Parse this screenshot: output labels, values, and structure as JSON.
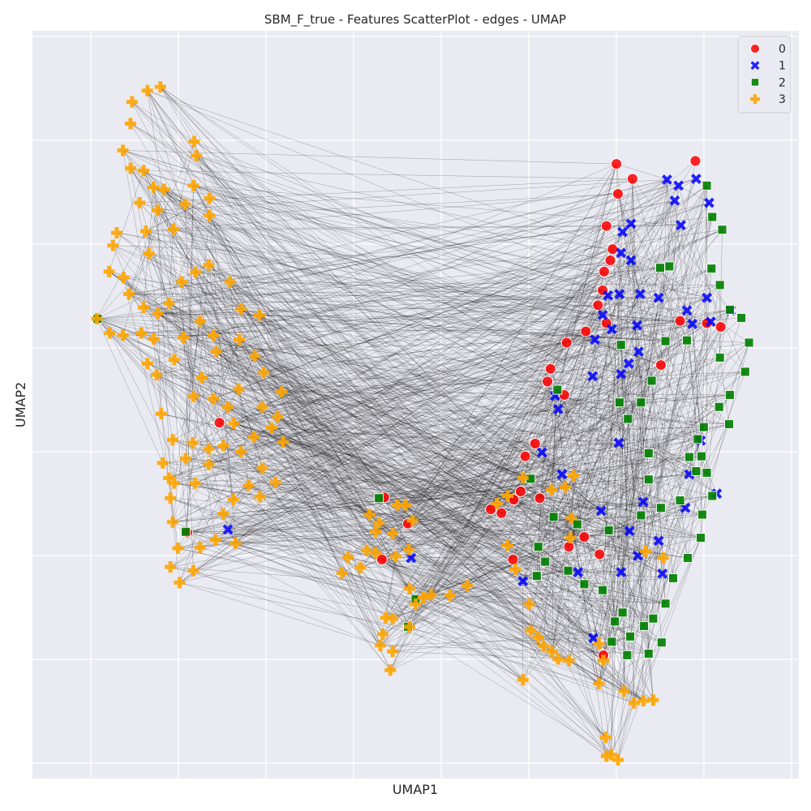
{
  "chart_data": {
    "type": "scatter",
    "title": "SBM_F_true - Features ScatterPlot - edges - UMAP",
    "xlabel": "UMAP1",
    "ylabel": "UMAP2",
    "xlim": [
      0,
      1
    ],
    "ylim": [
      0,
      1
    ],
    "grid": true,
    "tick_labels_shown": false,
    "legend": {
      "position": "top-right",
      "entries": [
        "0",
        "1",
        "2",
        "3"
      ]
    },
    "series": [
      {
        "name": "0",
        "marker": "circle",
        "color": "#ff0000",
        "points": [
          [
            0.762,
            0.822
          ],
          [
            0.783,
            0.802
          ],
          [
            0.764,
            0.782
          ],
          [
            0.749,
            0.739
          ],
          [
            0.757,
            0.708
          ],
          [
            0.754,
            0.693
          ],
          [
            0.746,
            0.678
          ],
          [
            0.744,
            0.653
          ],
          [
            0.738,
            0.633
          ],
          [
            0.749,
            0.609
          ],
          [
            0.722,
            0.598
          ],
          [
            0.697,
            0.583
          ],
          [
            0.676,
            0.548
          ],
          [
            0.672,
            0.531
          ],
          [
            0.694,
            0.513
          ],
          [
            0.656,
            0.448
          ],
          [
            0.643,
            0.431
          ],
          [
            0.637,
            0.384
          ],
          [
            0.598,
            0.36
          ],
          [
            0.612,
            0.355
          ],
          [
            0.628,
            0.373
          ],
          [
            0.662,
            0.375
          ],
          [
            0.7,
            0.31
          ],
          [
            0.72,
            0.323
          ],
          [
            0.74,
            0.3
          ],
          [
            0.82,
            0.553
          ],
          [
            0.845,
            0.612
          ],
          [
            0.88,
            0.609
          ],
          [
            0.898,
            0.604
          ],
          [
            0.865,
            0.826
          ],
          [
            0.627,
            0.293
          ],
          [
            0.49,
            0.341
          ],
          [
            0.456,
            0.293
          ],
          [
            0.244,
            0.476
          ],
          [
            0.202,
            0.329
          ],
          [
            0.459,
            0.376
          ],
          [
            0.745,
            0.165
          ]
        ]
      },
      {
        "name": "1",
        "marker": "x",
        "color": "#0000ff",
        "points": [
          [
            0.866,
            0.802
          ],
          [
            0.843,
            0.793
          ],
          [
            0.828,
            0.801
          ],
          [
            0.838,
            0.773
          ],
          [
            0.883,
            0.77
          ],
          [
            0.846,
            0.74
          ],
          [
            0.781,
            0.742
          ],
          [
            0.77,
            0.731
          ],
          [
            0.768,
            0.703
          ],
          [
            0.781,
            0.693
          ],
          [
            0.751,
            0.646
          ],
          [
            0.766,
            0.648
          ],
          [
            0.793,
            0.648
          ],
          [
            0.817,
            0.643
          ],
          [
            0.88,
            0.643
          ],
          [
            0.911,
            0.626
          ],
          [
            0.744,
            0.62
          ],
          [
            0.756,
            0.601
          ],
          [
            0.789,
            0.606
          ],
          [
            0.734,
            0.587
          ],
          [
            0.854,
            0.626
          ],
          [
            0.861,
            0.608
          ],
          [
            0.885,
            0.611
          ],
          [
            0.791,
            0.571
          ],
          [
            0.778,
            0.555
          ],
          [
            0.768,
            0.541
          ],
          [
            0.731,
            0.538
          ],
          [
            0.682,
            0.512
          ],
          [
            0.686,
            0.494
          ],
          [
            0.665,
            0.436
          ],
          [
            0.691,
            0.407
          ],
          [
            0.765,
            0.449
          ],
          [
            0.872,
            0.452
          ],
          [
            0.857,
            0.407
          ],
          [
            0.893,
            0.381
          ],
          [
            0.797,
            0.37
          ],
          [
            0.742,
            0.358
          ],
          [
            0.779,
            0.331
          ],
          [
            0.817,
            0.318
          ],
          [
            0.79,
            0.298
          ],
          [
            0.768,
            0.276
          ],
          [
            0.822,
            0.274
          ],
          [
            0.852,
            0.362
          ],
          [
            0.64,
            0.264
          ],
          [
            0.712,
            0.276
          ],
          [
            0.732,
            0.188
          ],
          [
            0.255,
            0.333
          ],
          [
            0.494,
            0.295
          ]
        ]
      },
      {
        "name": "2",
        "marker": "square",
        "color": "#008000",
        "points": [
          [
            0.88,
            0.793
          ],
          [
            0.887,
            0.751
          ],
          [
            0.9,
            0.734
          ],
          [
            0.886,
            0.682
          ],
          [
            0.897,
            0.66
          ],
          [
            0.91,
            0.627
          ],
          [
            0.925,
            0.616
          ],
          [
            0.935,
            0.583
          ],
          [
            0.93,
            0.544
          ],
          [
            0.91,
            0.513
          ],
          [
            0.896,
            0.497
          ],
          [
            0.876,
            0.47
          ],
          [
            0.868,
            0.454
          ],
          [
            0.857,
            0.43
          ],
          [
            0.873,
            0.431
          ],
          [
            0.866,
            0.411
          ],
          [
            0.88,
            0.409
          ],
          [
            0.887,
            0.378
          ],
          [
            0.874,
            0.353
          ],
          [
            0.872,
            0.322
          ],
          [
            0.855,
            0.295
          ],
          [
            0.836,
            0.268
          ],
          [
            0.826,
            0.234
          ],
          [
            0.81,
            0.214
          ],
          [
            0.798,
            0.204
          ],
          [
            0.821,
            0.182
          ],
          [
            0.804,
            0.167
          ],
          [
            0.776,
            0.165
          ],
          [
            0.756,
            0.183
          ],
          [
            0.77,
            0.222
          ],
          [
            0.744,
            0.252
          ],
          [
            0.72,
            0.26
          ],
          [
            0.699,
            0.278
          ],
          [
            0.669,
            0.29
          ],
          [
            0.66,
            0.31
          ],
          [
            0.68,
            0.35
          ],
          [
            0.711,
            0.34
          ],
          [
            0.752,
            0.332
          ],
          [
            0.794,
            0.352
          ],
          [
            0.82,
            0.362
          ],
          [
            0.845,
            0.372
          ],
          [
            0.804,
            0.4
          ],
          [
            0.777,
            0.481
          ],
          [
            0.794,
            0.503
          ],
          [
            0.808,
            0.532
          ],
          [
            0.826,
            0.585
          ],
          [
            0.854,
            0.586
          ],
          [
            0.831,
            0.685
          ],
          [
            0.819,
            0.683
          ],
          [
            0.768,
            0.58
          ],
          [
            0.766,
            0.503
          ],
          [
            0.685,
            0.52
          ],
          [
            0.65,
            0.401
          ],
          [
            0.658,
            0.271
          ],
          [
            0.804,
            0.435
          ],
          [
            0.897,
            0.563
          ],
          [
            0.909,
            0.474
          ],
          [
            0.76,
            0.21
          ],
          [
            0.78,
            0.19
          ],
          [
            0.085,
            0.615
          ],
          [
            0.2,
            0.33
          ],
          [
            0.5,
            0.24
          ],
          [
            0.49,
            0.203
          ],
          [
            0.452,
            0.375
          ]
        ]
      },
      {
        "name": "3",
        "marker": "plus",
        "color": "#ffa500",
        "points": [
          [
            0.167,
            0.925
          ],
          [
            0.15,
            0.92
          ],
          [
            0.13,
            0.905
          ],
          [
            0.128,
            0.876
          ],
          [
            0.118,
            0.84
          ],
          [
            0.128,
            0.816
          ],
          [
            0.145,
            0.813
          ],
          [
            0.158,
            0.791
          ],
          [
            0.14,
            0.77
          ],
          [
            0.163,
            0.76
          ],
          [
            0.172,
            0.788
          ],
          [
            0.21,
            0.793
          ],
          [
            0.214,
            0.833
          ],
          [
            0.211,
            0.852
          ],
          [
            0.231,
            0.776
          ],
          [
            0.231,
            0.753
          ],
          [
            0.199,
            0.768
          ],
          [
            0.184,
            0.735
          ],
          [
            0.148,
            0.732
          ],
          [
            0.152,
            0.702
          ],
          [
            0.11,
            0.73
          ],
          [
            0.105,
            0.713
          ],
          [
            0.1,
            0.678
          ],
          [
            0.119,
            0.67
          ],
          [
            0.126,
            0.648
          ],
          [
            0.084,
            0.615
          ],
          [
            0.101,
            0.596
          ],
          [
            0.118,
            0.593
          ],
          [
            0.142,
            0.596
          ],
          [
            0.158,
            0.588
          ],
          [
            0.15,
            0.555
          ],
          [
            0.162,
            0.54
          ],
          [
            0.185,
            0.56
          ],
          [
            0.197,
            0.59
          ],
          [
            0.219,
            0.612
          ],
          [
            0.236,
            0.593
          ],
          [
            0.24,
            0.571
          ],
          [
            0.221,
            0.536
          ],
          [
            0.21,
            0.511
          ],
          [
            0.236,
            0.508
          ],
          [
            0.269,
            0.521
          ],
          [
            0.27,
            0.587
          ],
          [
            0.296,
            0.62
          ],
          [
            0.272,
            0.628
          ],
          [
            0.258,
            0.664
          ],
          [
            0.23,
            0.687
          ],
          [
            0.213,
            0.677
          ],
          [
            0.195,
            0.664
          ],
          [
            0.178,
            0.636
          ],
          [
            0.164,
            0.622
          ],
          [
            0.145,
            0.63
          ],
          [
            0.168,
            0.488
          ],
          [
            0.183,
            0.453
          ],
          [
            0.209,
            0.449
          ],
          [
            0.23,
            0.441
          ],
          [
            0.249,
            0.445
          ],
          [
            0.272,
            0.437
          ],
          [
            0.289,
            0.457
          ],
          [
            0.312,
            0.469
          ],
          [
            0.327,
            0.45
          ],
          [
            0.3,
            0.415
          ],
          [
            0.317,
            0.396
          ],
          [
            0.297,
            0.377
          ],
          [
            0.282,
            0.392
          ],
          [
            0.262,
            0.373
          ],
          [
            0.249,
            0.354
          ],
          [
            0.265,
            0.315
          ],
          [
            0.239,
            0.319
          ],
          [
            0.219,
            0.309
          ],
          [
            0.21,
            0.278
          ],
          [
            0.192,
            0.262
          ],
          [
            0.18,
            0.283
          ],
          [
            0.19,
            0.308
          ],
          [
            0.183,
            0.343
          ],
          [
            0.18,
            0.375
          ],
          [
            0.185,
            0.395
          ],
          [
            0.212,
            0.395
          ],
          [
            0.23,
            0.42
          ],
          [
            0.2,
            0.428
          ],
          [
            0.17,
            0.422
          ],
          [
            0.178,
            0.402
          ],
          [
            0.263,
            0.475
          ],
          [
            0.255,
            0.497
          ],
          [
            0.3,
            0.497
          ],
          [
            0.32,
            0.484
          ],
          [
            0.302,
            0.543
          ],
          [
            0.29,
            0.565
          ],
          [
            0.325,
            0.517
          ],
          [
            0.412,
            0.296
          ],
          [
            0.404,
            0.275
          ],
          [
            0.428,
            0.282
          ],
          [
            0.436,
            0.305
          ],
          [
            0.448,
            0.33
          ],
          [
            0.44,
            0.353
          ],
          [
            0.452,
            0.342
          ],
          [
            0.47,
            0.328
          ],
          [
            0.474,
            0.297
          ],
          [
            0.491,
            0.306
          ],
          [
            0.496,
            0.345
          ],
          [
            0.487,
            0.366
          ],
          [
            0.476,
            0.366
          ],
          [
            0.448,
            0.302
          ],
          [
            0.492,
            0.254
          ],
          [
            0.5,
            0.233
          ],
          [
            0.51,
            0.242
          ],
          [
            0.52,
            0.246
          ],
          [
            0.545,
            0.245
          ],
          [
            0.567,
            0.258
          ],
          [
            0.461,
            0.215
          ],
          [
            0.47,
            0.214
          ],
          [
            0.492,
            0.203
          ],
          [
            0.47,
            0.17
          ],
          [
            0.454,
            0.178
          ],
          [
            0.467,
            0.145
          ],
          [
            0.457,
            0.193
          ],
          [
            0.606,
            0.368
          ],
          [
            0.62,
            0.378
          ],
          [
            0.64,
            0.402
          ],
          [
            0.677,
            0.386
          ],
          [
            0.695,
            0.39
          ],
          [
            0.706,
            0.405
          ],
          [
            0.703,
            0.348
          ],
          [
            0.702,
            0.322
          ],
          [
            0.62,
            0.312
          ],
          [
            0.63,
            0.28
          ],
          [
            0.648,
            0.233
          ],
          [
            0.65,
            0.198
          ],
          [
            0.64,
            0.132
          ],
          [
            0.66,
            0.189
          ],
          [
            0.678,
            0.17
          ],
          [
            0.686,
            0.16
          ],
          [
            0.667,
            0.177
          ],
          [
            0.7,
            0.158
          ],
          [
            0.739,
            0.127
          ],
          [
            0.745,
            0.158
          ],
          [
            0.739,
            0.18
          ],
          [
            0.772,
            0.117
          ],
          [
            0.797,
            0.104
          ],
          [
            0.81,
            0.105
          ],
          [
            0.785,
            0.101
          ],
          [
            0.748,
            0.055
          ],
          [
            0.755,
            0.032
          ],
          [
            0.764,
            0.025
          ],
          [
            0.749,
            0.03
          ],
          [
            0.823,
            0.295
          ],
          [
            0.8,
            0.304
          ]
        ]
      }
    ]
  }
}
